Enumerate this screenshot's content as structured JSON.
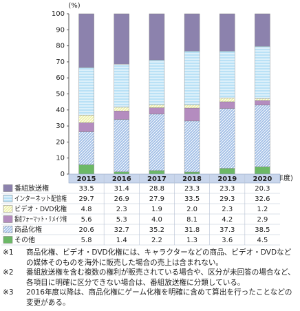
{
  "chart_data": {
    "type": "stacked_bar",
    "y_unit": "(%)",
    "x_unit": "(年度)",
    "categories": [
      "2015",
      "2016",
      "2017",
      "2018",
      "2019",
      "2020"
    ],
    "ylim": [
      0,
      100
    ],
    "yticks": [
      0,
      10,
      20,
      30,
      40,
      50,
      60,
      70,
      80,
      90,
      100
    ],
    "series": [
      {
        "name": "番組放送権",
        "color": "#8c82ad",
        "pattern": "none",
        "values": [
          33.5,
          31.4,
          28.8,
          23.3,
          23.3,
          20.3
        ],
        "value_labels": [
          "33.5",
          "31.4",
          "28.8",
          "23.3",
          "23.3",
          "20.3"
        ]
      },
      {
        "name": "インターネット配信権",
        "color": "#b9e1f6",
        "pattern": "horizontal",
        "values": [
          29.7,
          26.9,
          27.9,
          33.5,
          29.3,
          32.6
        ],
        "value_labels": [
          "29.7",
          "26.9",
          "27.9",
          "33.5",
          "29.3",
          "32.6"
        ]
      },
      {
        "name": "ビデオ・DVD化権",
        "color": "#eef0a8",
        "pattern": "diagonal",
        "values": [
          4.8,
          2.3,
          1.9,
          2.0,
          2.3,
          1.2
        ],
        "value_labels": [
          "4.8",
          "2.3",
          "1.9",
          "2.0",
          "2.3",
          "1.2"
        ]
      },
      {
        "name": "番組フォーマット・リメイク権",
        "color": "#b48cbf",
        "pattern": "none",
        "values": [
          5.6,
          5.3,
          4.0,
          8.1,
          4.2,
          2.9
        ],
        "value_labels": [
          "5.6",
          "5.3",
          "4.0",
          "8.1",
          "4.2",
          "2.9"
        ]
      },
      {
        "name": "商品化権",
        "color": "#9fbde6",
        "pattern": "diagonal",
        "values": [
          20.6,
          32.7,
          35.2,
          31.8,
          37.3,
          38.5
        ],
        "value_labels": [
          "20.6",
          "32.7",
          "35.2",
          "31.8",
          "37.3",
          "38.5"
        ]
      },
      {
        "name": "その他",
        "color": "#6cb866",
        "pattern": "none",
        "values": [
          5.8,
          1.4,
          2.2,
          1.3,
          3.6,
          4.5
        ],
        "value_labels": [
          "5.8",
          "1.4",
          "2.2",
          "1.3",
          "3.6",
          "4.5"
        ]
      }
    ]
  },
  "notes": [
    {
      "marker": "※1",
      "text": "商品化権、ビデオ・DVD化権には、キャラクターなどの商品、ビデオ・DVDなどの媒体そのものを海外に販売した場合の売上は含まれない。"
    },
    {
      "marker": "※2",
      "text": "番組放送権を含む複数の権利が販売されている場合や、区分が未回答の場合など、各項目に明確に区分できない場合は、番組放送権に分類している。"
    },
    {
      "marker": "※3",
      "text": "2016年度以降は、商品化権にゲーム化権を明確に含めて算出を行ったことなどの変更がある。"
    }
  ]
}
